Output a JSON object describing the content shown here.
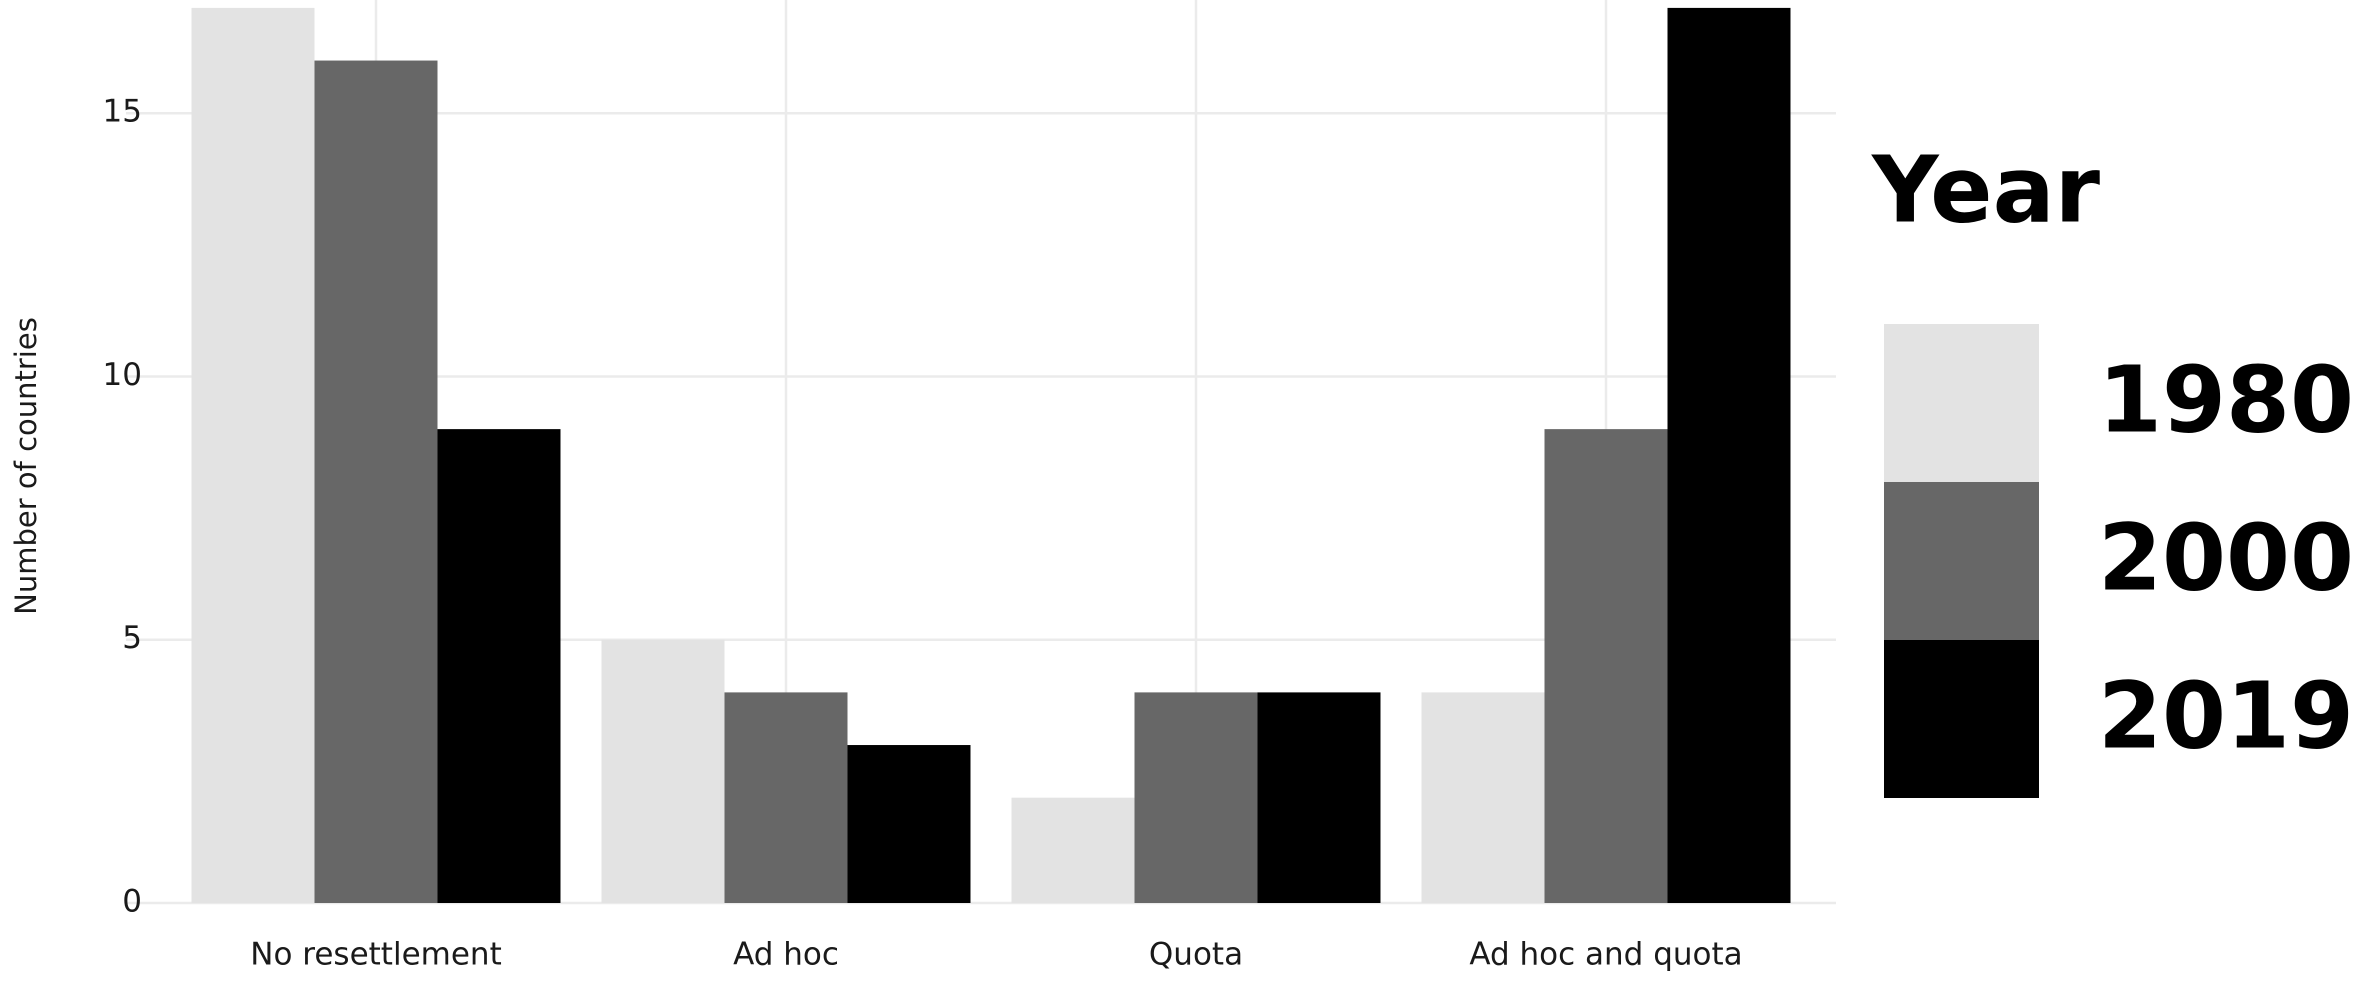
{
  "chart_data": {
    "type": "bar",
    "y_label": "Number of countries",
    "legend_title": "Year",
    "categories": [
      "No resettlement",
      "Ad hoc",
      "Quota",
      "Ad hoc and quota"
    ],
    "series": [
      {
        "name": "1980",
        "color": "#e3e3e3",
        "values": [
          17,
          5,
          2,
          4
        ]
      },
      {
        "name": "2000",
        "color": "#676767",
        "values": [
          16,
          4,
          4,
          9
        ]
      },
      {
        "name": "2019",
        "color": "#000000",
        "values": [
          9,
          3,
          4,
          17
        ]
      }
    ],
    "ylim": [
      0,
      17.15
    ],
    "yticks": [
      0,
      5,
      10,
      15
    ],
    "grid": true,
    "legend": "right"
  }
}
